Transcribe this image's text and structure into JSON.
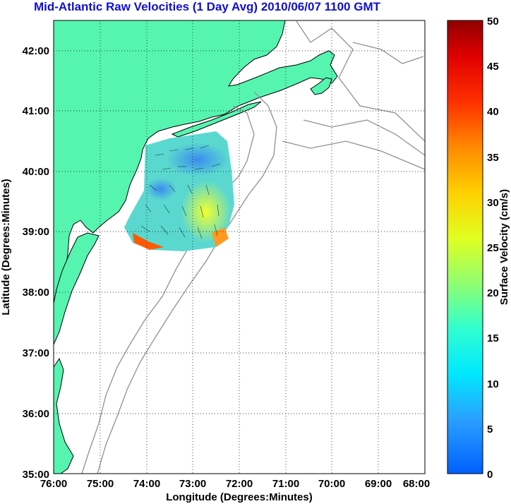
{
  "title": "Mid-Atlantic Raw Velocities (1 Day Avg) 2010/06/07 1100 GMT",
  "map": {
    "xlabel": "Longitude (Degrees:Minutes)",
    "ylabel": "Latitude (Degrees:Minutes)",
    "lon_ticks": [
      "76:00",
      "75:00",
      "74:00",
      "73:00",
      "72:00",
      "71:00",
      "70:00",
      "69:00",
      "68:00"
    ],
    "lat_ticks": [
      "35:00",
      "36:00",
      "37:00",
      "38:00",
      "39:00",
      "40:00",
      "41:00",
      "42:00"
    ],
    "lon_range": [
      -76,
      -68
    ],
    "lat_range": [
      35,
      42.5
    ],
    "land_color": "#55f5b0",
    "contour_color": "#909090"
  },
  "colorbar": {
    "label": "Surface Velocity (cm/s)",
    "ticks": [
      "0",
      "5",
      "10",
      "15",
      "20",
      "25",
      "30",
      "35",
      "40",
      "45",
      "50"
    ],
    "range": [
      0,
      50
    ]
  }
}
